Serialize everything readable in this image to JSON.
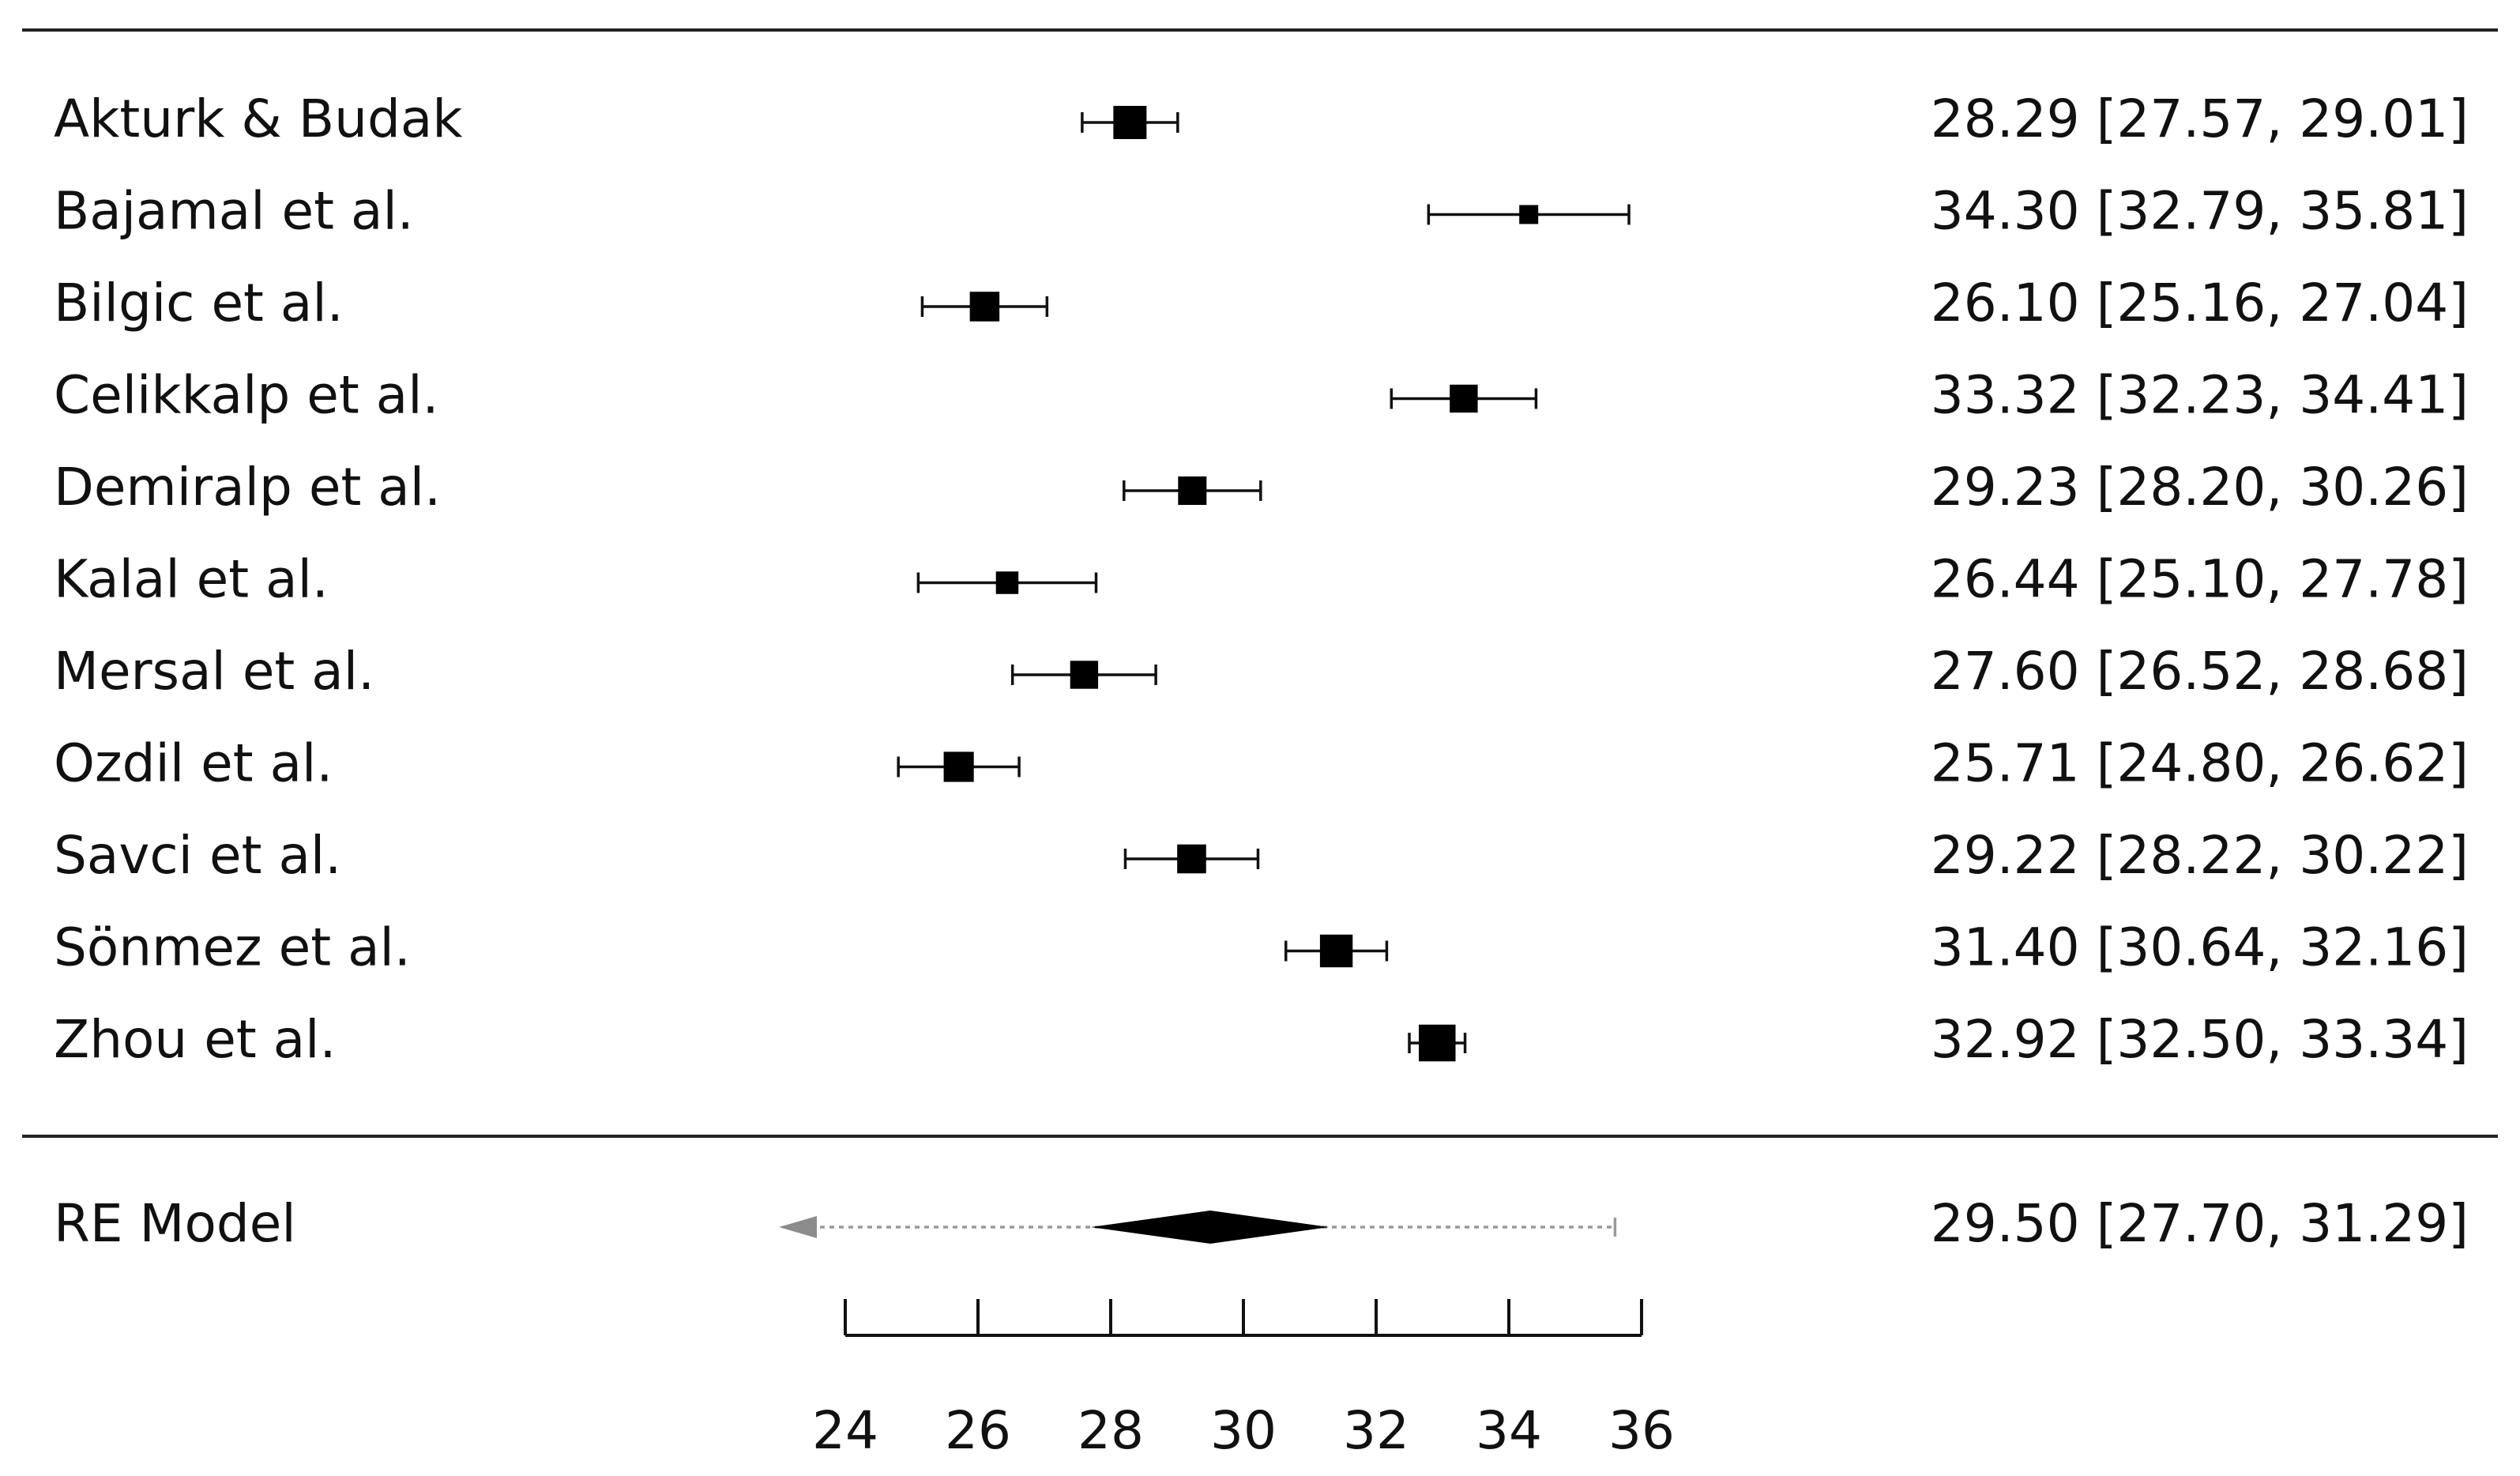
{
  "chart_data": {
    "type": "forest",
    "title": "",
    "xlabel": "",
    "ylabel": "",
    "xlim": [
      24,
      36
    ],
    "x_ticks": [
      "24",
      "26",
      "28",
      "30",
      "32",
      "34",
      "36"
    ],
    "studies": [
      {
        "label": "Akturk & Budak",
        "estimate": 28.29,
        "ci_low": 27.57,
        "ci_high": 29.01,
        "summary_text": "28.29 [27.57, 29.01]",
        "weight": 1.0
      },
      {
        "label": "Bajamal et al.",
        "estimate": 34.3,
        "ci_low": 32.79,
        "ci_high": 35.81,
        "summary_text": "34.30 [32.79, 35.81]",
        "weight": 0.4
      },
      {
        "label": "Bilgic et al.",
        "estimate": 26.1,
        "ci_low": 25.16,
        "ci_high": 27.04,
        "summary_text": "26.10 [25.16, 27.04]",
        "weight": 0.85
      },
      {
        "label": "Celikkalp et al.",
        "estimate": 33.32,
        "ci_low": 32.23,
        "ci_high": 34.41,
        "summary_text": "33.32 [32.23, 34.41]",
        "weight": 0.78
      },
      {
        "label": "Demiralp et al.",
        "estimate": 29.23,
        "ci_low": 28.2,
        "ci_high": 30.26,
        "summary_text": "29.23 [28.20, 30.26]",
        "weight": 0.8
      },
      {
        "label": "Kalal et al.",
        "estimate": 26.44,
        "ci_low": 25.1,
        "ci_high": 27.78,
        "summary_text": "26.44 [25.10, 27.78]",
        "weight": 0.55
      },
      {
        "label": "Mersal et al.",
        "estimate": 27.6,
        "ci_low": 26.52,
        "ci_high": 28.68,
        "summary_text": "27.60 [26.52, 28.68]",
        "weight": 0.78
      },
      {
        "label": "Ozdil et al.",
        "estimate": 25.71,
        "ci_low": 24.8,
        "ci_high": 26.62,
        "summary_text": "25.71 [24.80, 26.62]",
        "weight": 0.87
      },
      {
        "label": "Savci et al.",
        "estimate": 29.22,
        "ci_low": 28.22,
        "ci_high": 30.22,
        "summary_text": "29.22 [28.22, 30.22]",
        "weight": 0.82
      },
      {
        "label": "Sönmez et al.",
        "estimate": 31.4,
        "ci_low": 30.64,
        "ci_high": 32.16,
        "summary_text": "31.40 [30.64, 32.16]",
        "weight": 0.98
      },
      {
        "label": "Zhou et al.",
        "estimate": 32.92,
        "ci_low": 32.5,
        "ci_high": 33.34,
        "summary_text": "32.92 [32.50, 33.34]",
        "weight": 1.15
      }
    ],
    "summary": {
      "label": "RE Model",
      "estimate": 29.5,
      "ci_low": 27.7,
      "ci_high": 31.29,
      "pi_low": 23.0,
      "pi_high": 35.6,
      "summary_text": "29.50 [27.70, 31.29]"
    },
    "grid": false,
    "legend": "none"
  }
}
